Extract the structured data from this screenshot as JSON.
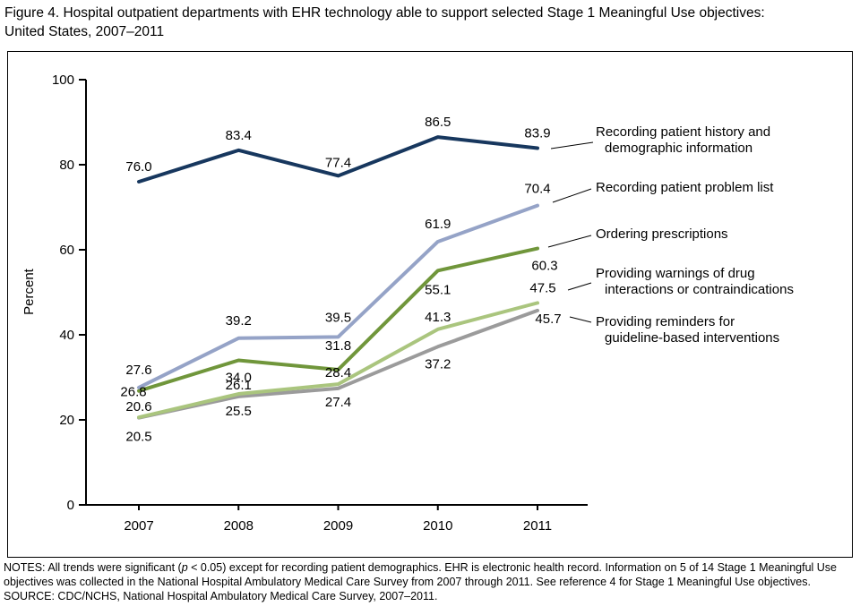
{
  "figure": {
    "title": "Figure 4. Hospital outpatient departments with EHR technology able to support selected Stage 1 Meaningful Use objectives: United States, 2007–2011"
  },
  "notes": {
    "prefix": "NOTES: All trends were significant (",
    "p_italic": "p",
    "suffix": " < 0.05) except for recording patient demographics. EHR is electronic health record. Information on 5 of 14 Stage 1 Meaningful Use objectives was collected in the National Hospital Ambulatory Medical Care Survey from 2007 through 2011. See reference 4 for Stage 1 Meaningful Use objectives.",
    "source": "SOURCE: CDC/NCHS, National Hospital Ambulatory Medical Care Survey, 2007–2011."
  },
  "chart_data": {
    "type": "line",
    "title": "",
    "xlabel": "",
    "ylabel": "Percent",
    "ylim": [
      0,
      100
    ],
    "yticks": [
      0,
      20,
      40,
      60,
      80,
      100
    ],
    "x": [
      "2007",
      "2008",
      "2009",
      "2010",
      "2011"
    ],
    "grid": false,
    "legend_position": "right",
    "series": [
      {
        "name": "Recording patient history and demographic information",
        "legend_lines": [
          "Recording patient history and",
          "demographic information"
        ],
        "color": "#17375e",
        "values": [
          76.0,
          83.4,
          77.4,
          86.5,
          83.9
        ]
      },
      {
        "name": "Recording patient problem list",
        "legend_lines": [
          "Recording patient problem list"
        ],
        "color": "#95a3c7",
        "values": [
          27.6,
          39.2,
          39.5,
          61.9,
          70.4
        ]
      },
      {
        "name": "Ordering prescriptions",
        "legend_lines": [
          "Ordering prescriptions"
        ],
        "color": "#70963b",
        "values": [
          26.8,
          34.0,
          31.8,
          55.1,
          60.3
        ]
      },
      {
        "name": "Providing warnings of drug interactions or contraindications",
        "legend_lines": [
          "Providing warnings of drug",
          "interactions or contraindications"
        ],
        "color": "#aac57e",
        "values": [
          20.6,
          26.1,
          28.4,
          41.3,
          47.5
        ]
      },
      {
        "name": "Providing reminders for guideline-based interventions",
        "legend_lines": [
          "Providing reminders for",
          "guideline-based interventions"
        ],
        "color": "#9b9b9b",
        "values": [
          20.5,
          25.5,
          27.4,
          37.2,
          45.7
        ]
      }
    ]
  }
}
